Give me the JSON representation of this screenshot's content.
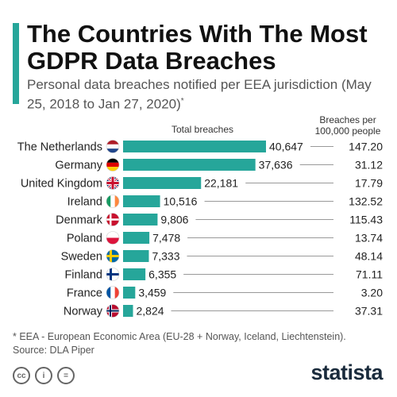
{
  "header": {
    "title": "The Countries With The Most GDPR Data Breaches",
    "subtitle": "Personal data breaches notified per EEA jurisdiction (May 25, 2018 to Jan 27, 2020)",
    "subtitle_mark": "*"
  },
  "chart_data": {
    "type": "bar",
    "orientation": "horizontal",
    "column_headers": {
      "total": "Total breaches",
      "per_capita": "Breaches per 100,000 people"
    },
    "categories": [
      "The Netherlands",
      "Germany",
      "United Kingdom",
      "Ireland",
      "Denmark",
      "Poland",
      "Sweden",
      "Finland",
      "France",
      "Norway"
    ],
    "value_labels": [
      "40,647",
      "37,636",
      "22,181",
      "10,516",
      "9,806",
      "7,478",
      "7,333",
      "6,355",
      "3,459",
      "2,824"
    ],
    "per_capita_labels": [
      "147.20",
      "31.12",
      "17.79",
      "132.52",
      "115.43",
      "13.74",
      "48.14",
      "71.11",
      "3.20",
      "37.31"
    ],
    "series": [
      {
        "values": [
          40647,
          37636,
          22181,
          10516,
          9806,
          7478,
          7333,
          6355,
          3459,
          2824
        ]
      },
      {
        "values": [
          147.2,
          31.12,
          17.79,
          132.52,
          115.43,
          13.74,
          48.14,
          71.11,
          3.2,
          37.31
        ]
      }
    ],
    "flags": [
      "nl",
      "de",
      "gb",
      "ie",
      "dk",
      "pl",
      "se",
      "fi",
      "fr",
      "no"
    ],
    "bar_color": "#26a69a"
  },
  "footer": {
    "footnote": "* EEA - European Economic Area (EU-28 + Norway, Iceland, Liechtenstein).",
    "source": "Source: DLA Piper",
    "brand": "statista",
    "icons": [
      "cc-icon",
      "by-icon",
      "nd-icon"
    ]
  },
  "colors": {
    "accent": "#26a69a",
    "text": "#222222",
    "muted": "#555555"
  }
}
